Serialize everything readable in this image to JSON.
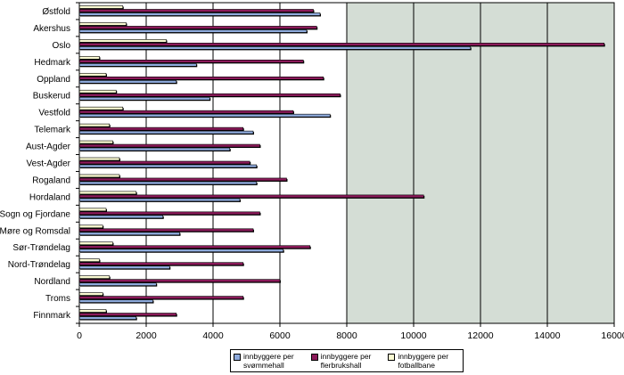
{
  "chart_data": {
    "type": "bar",
    "orientation": "horizontal",
    "categories": [
      "Østfold",
      "Akershus",
      "Oslo",
      "Hedmark",
      "Oppland",
      "Buskerud",
      "Vestfold",
      "Telemark",
      "Aust-Agder",
      "Vest-Agder",
      "Rogaland",
      "Hordaland",
      "Sogn og Fjordane",
      "Møre og Romsdal",
      "Sør-Trøndelag",
      "Nord-Trøndelag",
      "Nordland",
      "Troms",
      "Finnmark"
    ],
    "series": [
      {
        "name": "innbyggere per svømmehall",
        "color": "#8eaadc",
        "values": [
          7200,
          6800,
          11700,
          3500,
          2900,
          3900,
          7500,
          5200,
          4500,
          5300,
          5300,
          4800,
          2500,
          3000,
          6100,
          2700,
          2300,
          2200,
          1700
        ]
      },
      {
        "name": "innbyggere per flerbrukshall",
        "color": "#8b1a5a",
        "values": [
          7000,
          7100,
          15700,
          6700,
          7300,
          7800,
          6400,
          4900,
          5400,
          5100,
          6200,
          10300,
          5400,
          5200,
          6900,
          4900,
          6000,
          4900,
          2900
        ]
      },
      {
        "name": "innbyggere per fotballbane",
        "color": "#fafad2",
        "values": [
          1300,
          1400,
          2600,
          600,
          800,
          1100,
          1300,
          900,
          1000,
          1200,
          1200,
          1700,
          800,
          700,
          1000,
          600,
          900,
          700,
          800
        ]
      }
    ],
    "xlim": [
      0,
      16000
    ],
    "xticks": [
      "0",
      "2000",
      "4000",
      "6000",
      "8000",
      "10000",
      "12000",
      "14000",
      "16000"
    ],
    "grid": true,
    "title": "",
    "xlabel": "",
    "ylabel": "",
    "legend_position": "bottom"
  }
}
